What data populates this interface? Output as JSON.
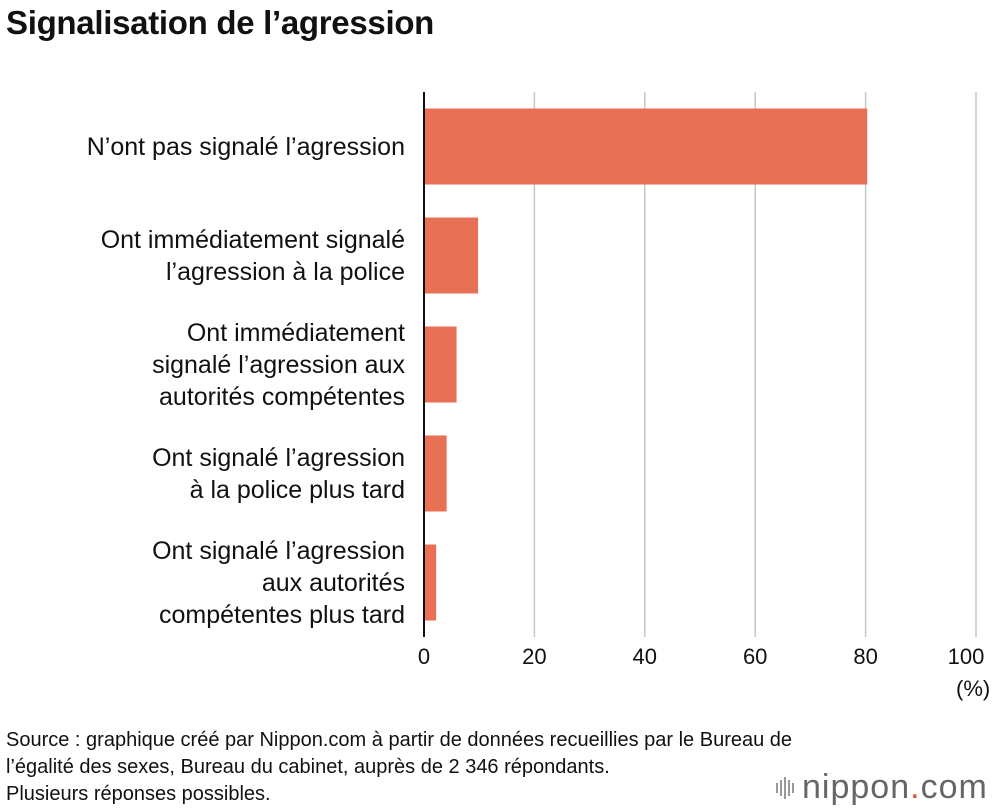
{
  "title": "Signalisation de l’agression",
  "chart_data": {
    "type": "bar",
    "orientation": "horizontal",
    "categories": [
      "N’ont pas signalé l’agression",
      "Ont immédiatement signalé\nl’agression à la police",
      "Ont immédiatement\nsignalé l’agression aux\nautorités compétentes",
      "Ont signalé l’agression\nà la police plus tard",
      "Ont signalé l’agression\naux autorités\ncompétentes plus tard"
    ],
    "values": [
      80.3,
      9.8,
      5.9,
      4.1,
      2.2
    ],
    "xlim": [
      0,
      100
    ],
    "xticks": [
      "0",
      "20",
      "40",
      "60",
      "80",
      "100"
    ],
    "xlabel": "(%)",
    "grid": true,
    "bar_color": "#e87055"
  },
  "source": {
    "line1": "Source : graphique créé par Nippon.com à partir de données recueillies par le Bureau de",
    "line2": "l’égalité des sexes, Bureau du cabinet, auprès de 2 346 répondants.",
    "line3": "Plusieurs réponses possibles."
  },
  "brand": {
    "name": "nippon",
    "dot": ".",
    "suffix": "com"
  }
}
